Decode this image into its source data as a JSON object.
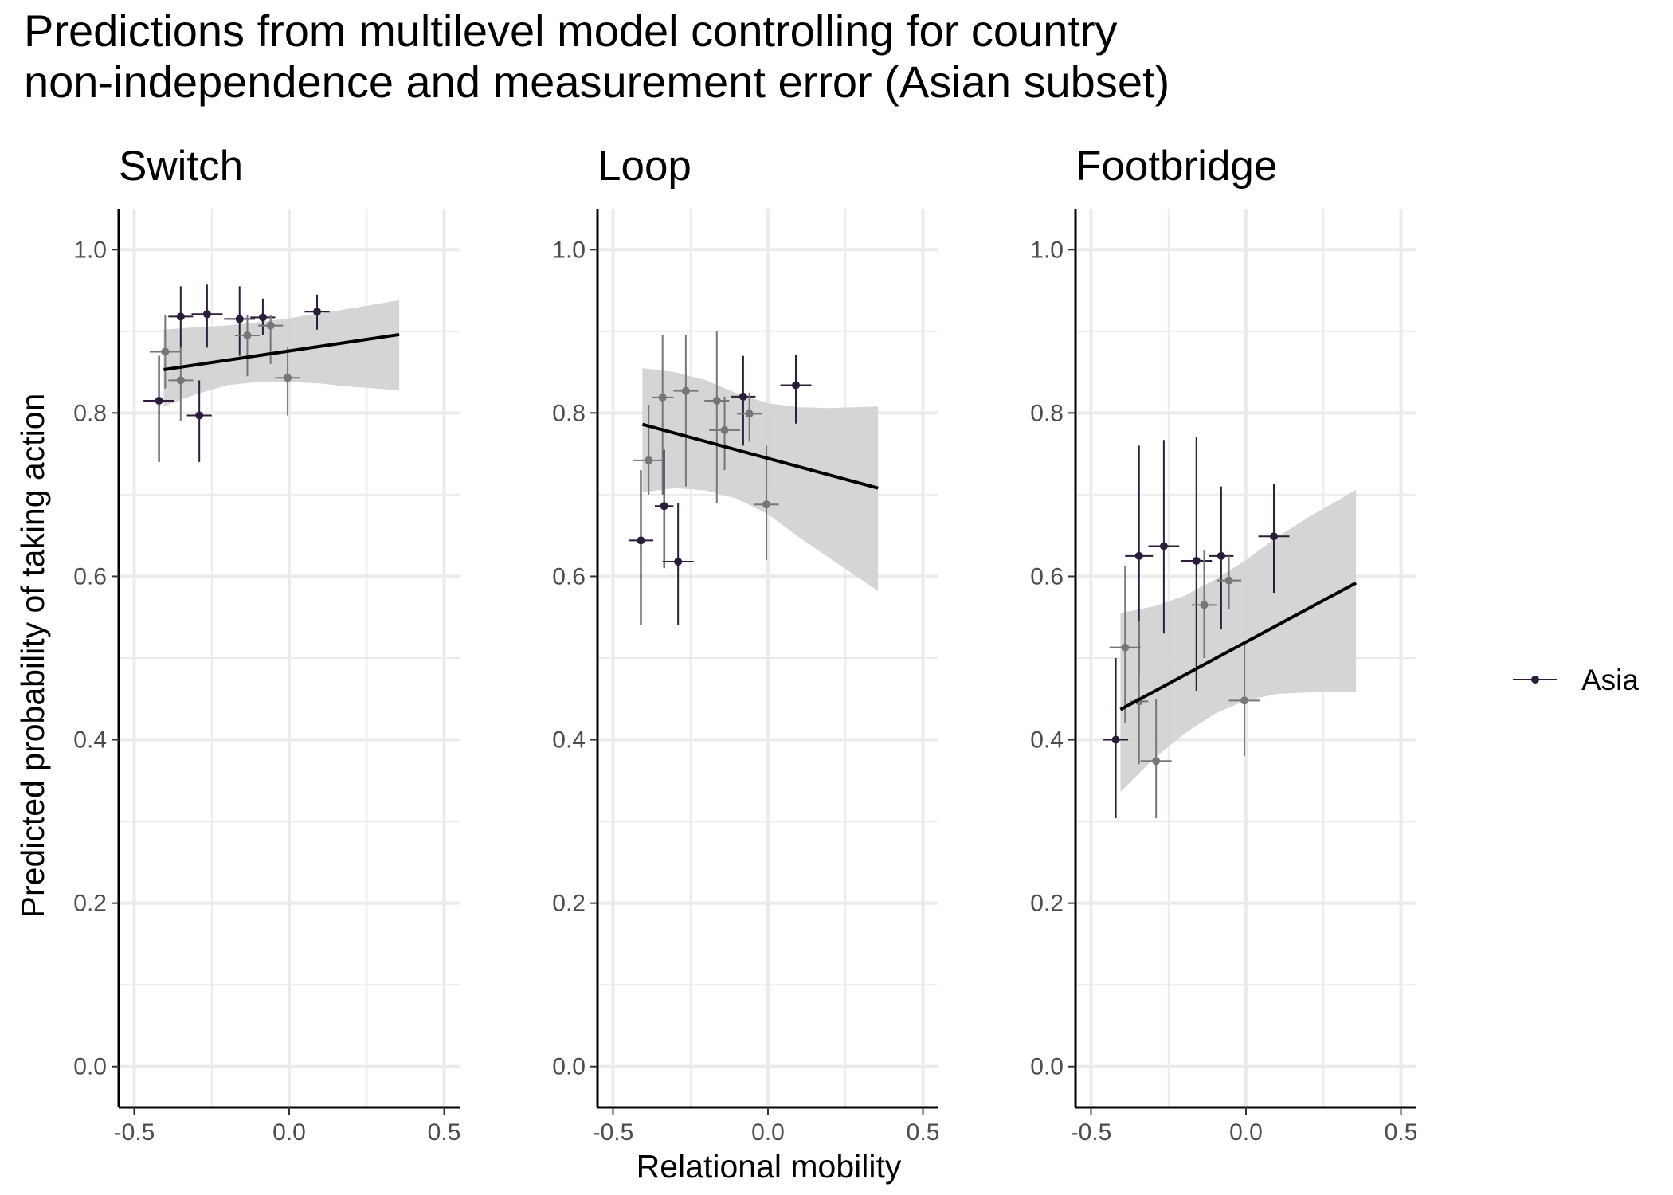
{
  "chart_data": {
    "type": "scatter",
    "title": "Predictions from multilevel model controlling for country\nnon-independence and measurement error (Asian subset)",
    "xlabel": "Relational mobility",
    "ylabel": "Predicted probability of taking action",
    "xlim": [
      -0.55,
      0.55
    ],
    "ylim": [
      -0.05,
      1.05
    ],
    "x_ticks": [
      "-0.5",
      "0.0",
      "0.5"
    ],
    "y_ticks": [
      "0.0",
      "0.2",
      "0.4",
      "0.6",
      "0.8",
      "1.0"
    ],
    "grid": true,
    "legend": {
      "position": "right",
      "label": "Asia"
    },
    "colors": {
      "point_dark": "#2b1d3a",
      "point_light": "#767676",
      "ribbon": "#d3d3d3",
      "fit_line": "#000000",
      "grid": "#ebebeb",
      "axis": "#000000"
    },
    "panels": [
      {
        "name": "Switch",
        "fit": {
          "x": [
            -0.405,
            0.355
          ],
          "y": [
            0.853,
            0.896
          ]
        },
        "ribbon": {
          "x": [
            -0.405,
            -0.3,
            -0.2,
            -0.1,
            0.0,
            0.1,
            0.2,
            0.355
          ],
          "lower": [
            0.808,
            0.823,
            0.834,
            0.838,
            0.838,
            0.836,
            0.832,
            0.828
          ],
          "upper": [
            0.902,
            0.905,
            0.907,
            0.911,
            0.916,
            0.922,
            0.928,
            0.938
          ]
        },
        "points": [
          {
            "x": -0.42,
            "y": 0.815,
            "xerr": 0.05,
            "ylo": 0.74,
            "yhi": 0.87,
            "tone": "dark"
          },
          {
            "x": -0.4,
            "y": 0.875,
            "xerr": 0.05,
            "ylo": 0.83,
            "yhi": 0.92,
            "tone": "light"
          },
          {
            "x": -0.35,
            "y": 0.918,
            "xerr": 0.04,
            "ylo": 0.88,
            "yhi": 0.955,
            "tone": "dark"
          },
          {
            "x": -0.35,
            "y": 0.84,
            "xerr": 0.04,
            "ylo": 0.79,
            "yhi": 0.88,
            "tone": "light"
          },
          {
            "x": -0.29,
            "y": 0.797,
            "xerr": 0.04,
            "ylo": 0.74,
            "yhi": 0.84,
            "tone": "dark"
          },
          {
            "x": -0.265,
            "y": 0.921,
            "xerr": 0.05,
            "ylo": 0.88,
            "yhi": 0.957,
            "tone": "dark"
          },
          {
            "x": -0.16,
            "y": 0.915,
            "xerr": 0.05,
            "ylo": 0.87,
            "yhi": 0.955,
            "tone": "dark"
          },
          {
            "x": -0.135,
            "y": 0.895,
            "xerr": 0.04,
            "ylo": 0.845,
            "yhi": 0.92,
            "tone": "light"
          },
          {
            "x": -0.085,
            "y": 0.917,
            "xerr": 0.04,
            "ylo": 0.895,
            "yhi": 0.94,
            "tone": "dark"
          },
          {
            "x": -0.06,
            "y": 0.907,
            "xerr": 0.04,
            "ylo": 0.86,
            "yhi": 0.92,
            "tone": "light"
          },
          {
            "x": -0.005,
            "y": 0.843,
            "xerr": 0.04,
            "ylo": 0.797,
            "yhi": 0.88,
            "tone": "light"
          },
          {
            "x": 0.09,
            "y": 0.924,
            "xerr": 0.04,
            "ylo": 0.902,
            "yhi": 0.945,
            "tone": "dark"
          }
        ]
      },
      {
        "name": "Loop",
        "fit": {
          "x": [
            -0.405,
            0.355
          ],
          "y": [
            0.786,
            0.708
          ]
        },
        "ribbon": {
          "x": [
            -0.405,
            -0.3,
            -0.2,
            -0.1,
            0.0,
            0.1,
            0.2,
            0.355
          ],
          "lower": [
            0.703,
            0.708,
            0.705,
            0.695,
            0.676,
            0.648,
            0.622,
            0.582
          ],
          "upper": [
            0.855,
            0.85,
            0.84,
            0.824,
            0.812,
            0.807,
            0.806,
            0.808
          ]
        },
        "points": [
          {
            "x": -0.41,
            "y": 0.644,
            "xerr": 0.04,
            "ylo": 0.54,
            "yhi": 0.73,
            "tone": "dark"
          },
          {
            "x": -0.385,
            "y": 0.742,
            "xerr": 0.05,
            "ylo": 0.7,
            "yhi": 0.81,
            "tone": "light"
          },
          {
            "x": -0.34,
            "y": 0.819,
            "xerr": 0.035,
            "ylo": 0.7,
            "yhi": 0.895,
            "tone": "light"
          },
          {
            "x": -0.335,
            "y": 0.686,
            "xerr": 0.03,
            "ylo": 0.61,
            "yhi": 0.755,
            "tone": "dark"
          },
          {
            "x": -0.29,
            "y": 0.618,
            "xerr": 0.05,
            "ylo": 0.54,
            "yhi": 0.69,
            "tone": "dark"
          },
          {
            "x": -0.265,
            "y": 0.827,
            "xerr": 0.04,
            "ylo": 0.71,
            "yhi": 0.895,
            "tone": "light"
          },
          {
            "x": -0.165,
            "y": 0.815,
            "xerr": 0.04,
            "ylo": 0.69,
            "yhi": 0.9,
            "tone": "light"
          },
          {
            "x": -0.14,
            "y": 0.779,
            "xerr": 0.05,
            "ylo": 0.73,
            "yhi": 0.82,
            "tone": "light"
          },
          {
            "x": -0.08,
            "y": 0.82,
            "xerr": 0.04,
            "ylo": 0.76,
            "yhi": 0.87,
            "tone": "dark"
          },
          {
            "x": -0.06,
            "y": 0.799,
            "xerr": 0.04,
            "ylo": 0.765,
            "yhi": 0.825,
            "tone": "light"
          },
          {
            "x": -0.005,
            "y": 0.688,
            "xerr": 0.04,
            "ylo": 0.62,
            "yhi": 0.76,
            "tone": "light"
          },
          {
            "x": 0.09,
            "y": 0.834,
            "xerr": 0.05,
            "ylo": 0.787,
            "yhi": 0.871,
            "tone": "dark"
          }
        ]
      },
      {
        "name": "Footbridge",
        "fit": {
          "x": [
            -0.405,
            0.355
          ],
          "y": [
            0.437,
            0.592
          ]
        },
        "ribbon": {
          "x": [
            -0.405,
            -0.3,
            -0.2,
            -0.1,
            0.0,
            0.1,
            0.2,
            0.355
          ],
          "lower": [
            0.336,
            0.376,
            0.407,
            0.432,
            0.448,
            0.456,
            0.458,
            0.459
          ],
          "upper": [
            0.555,
            0.563,
            0.576,
            0.596,
            0.62,
            0.648,
            0.672,
            0.706
          ]
        },
        "points": [
          {
            "x": -0.42,
            "y": 0.4,
            "xerr": 0.04,
            "ylo": 0.304,
            "yhi": 0.5,
            "tone": "dark"
          },
          {
            "x": -0.39,
            "y": 0.513,
            "xerr": 0.05,
            "ylo": 0.42,
            "yhi": 0.613,
            "tone": "light"
          },
          {
            "x": -0.345,
            "y": 0.625,
            "xerr": 0.045,
            "ylo": 0.48,
            "yhi": 0.76,
            "tone": "dark"
          },
          {
            "x": -0.345,
            "y": 0.447,
            "xerr": 0.03,
            "ylo": 0.37,
            "yhi": 0.545,
            "tone": "light"
          },
          {
            "x": -0.29,
            "y": 0.374,
            "xerr": 0.05,
            "ylo": 0.304,
            "yhi": 0.45,
            "tone": "light"
          },
          {
            "x": -0.265,
            "y": 0.637,
            "xerr": 0.05,
            "ylo": 0.53,
            "yhi": 0.767,
            "tone": "dark"
          },
          {
            "x": -0.16,
            "y": 0.619,
            "xerr": 0.05,
            "ylo": 0.46,
            "yhi": 0.77,
            "tone": "dark"
          },
          {
            "x": -0.135,
            "y": 0.565,
            "xerr": 0.04,
            "ylo": 0.5,
            "yhi": 0.632,
            "tone": "light"
          },
          {
            "x": -0.08,
            "y": 0.625,
            "xerr": 0.04,
            "ylo": 0.535,
            "yhi": 0.71,
            "tone": "dark"
          },
          {
            "x": -0.055,
            "y": 0.595,
            "xerr": 0.04,
            "ylo": 0.56,
            "yhi": 0.625,
            "tone": "light"
          },
          {
            "x": -0.005,
            "y": 0.448,
            "xerr": 0.05,
            "ylo": 0.38,
            "yhi": 0.52,
            "tone": "light"
          },
          {
            "x": 0.09,
            "y": 0.649,
            "xerr": 0.05,
            "ylo": 0.58,
            "yhi": 0.713,
            "tone": "dark"
          }
        ]
      }
    ]
  }
}
